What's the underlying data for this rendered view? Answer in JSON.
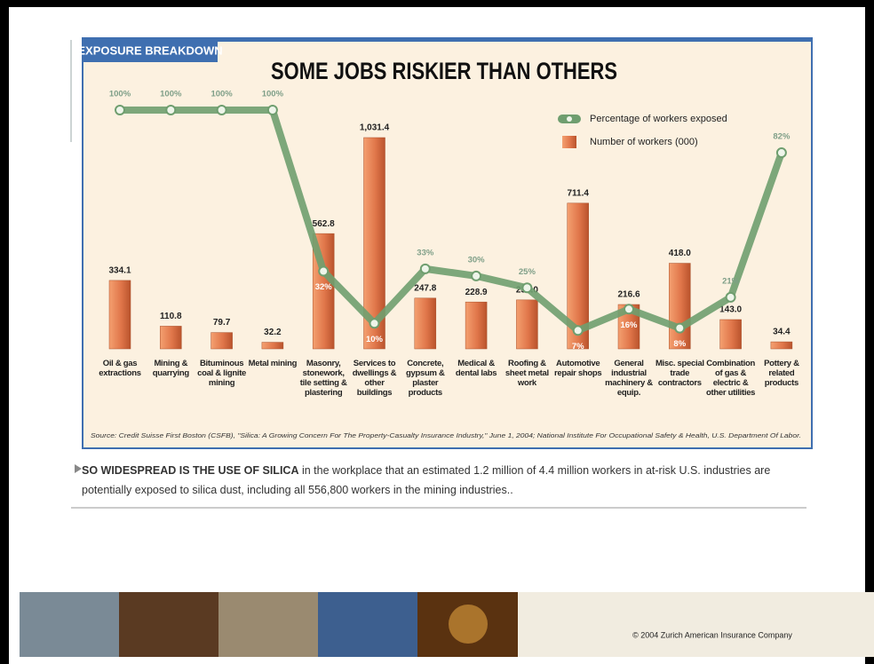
{
  "panel": {
    "tag": "EXPOSURE BREAKDOWN"
  },
  "chart_data": {
    "type": "bar-line",
    "title": "SOME JOBS RISKIER THAN OTHERS",
    "categories": [
      "Oil & gas extractions",
      "Mining & quarrying",
      "Bituminous coal & lignite mining",
      "Metal mining",
      "Masonry, stonework, tile setting & plastering",
      "Services to dwellings & other buildings",
      "Concrete, gypsum & plaster products",
      "Medical & dental labs",
      "Roofing & sheet metal work",
      "Automotive repair shops",
      "General industrial machinery & equip.",
      "Misc. special trade contractors",
      "Combination of gas & electric & other utilities",
      "Pottery & related products"
    ],
    "series": [
      {
        "name": "Number of workers (000)",
        "type": "bar",
        "color": "#e0764a",
        "values": [
          334.1,
          110.8,
          79.7,
          32.2,
          562.8,
          1031.4,
          247.8,
          228.9,
          239.0,
          711.4,
          216.6,
          418.0,
          143.0,
          34.4
        ],
        "value_labels": [
          "334.1",
          "110.8",
          "79.7",
          "32.2",
          "562.8",
          "1,031.4",
          "247.8",
          "228.9",
          "239.0",
          "711.4",
          "216.6",
          "418.0",
          "143.0",
          "34.4"
        ]
      },
      {
        "name": "Percentage of workers exposed",
        "type": "line",
        "color": "#6f9e6f",
        "values": [
          100,
          100,
          100,
          100,
          32,
          10,
          33,
          30,
          25,
          7,
          16,
          8,
          21,
          82
        ],
        "value_labels": [
          "100%",
          "100%",
          "100%",
          "100%",
          "32%",
          "10%",
          "33%",
          "30%",
          "25%",
          "7%",
          "16%",
          "8%",
          "21%",
          "82%"
        ]
      }
    ],
    "source": "Source: Credit Suisse First Boston (CSFB), \"Silica: A Growing Concern For The Property-Casualty Insurance Industry,\" June 1, 2004; National Institute For Occupational Safety & Health, U.S. Department Of Labor."
  },
  "caption": {
    "lead": "SO WIDESPREAD IS THE USE OF SILICA",
    "text": "in the workplace that an estimated 1.2 million of 4.4 million workers in at-risk U.S. industries are potentially exposed to silica dust, including all 556,800 workers in the mining industries.."
  },
  "footer": {
    "copyright": "© 2004 Zurich American Insurance Company"
  }
}
